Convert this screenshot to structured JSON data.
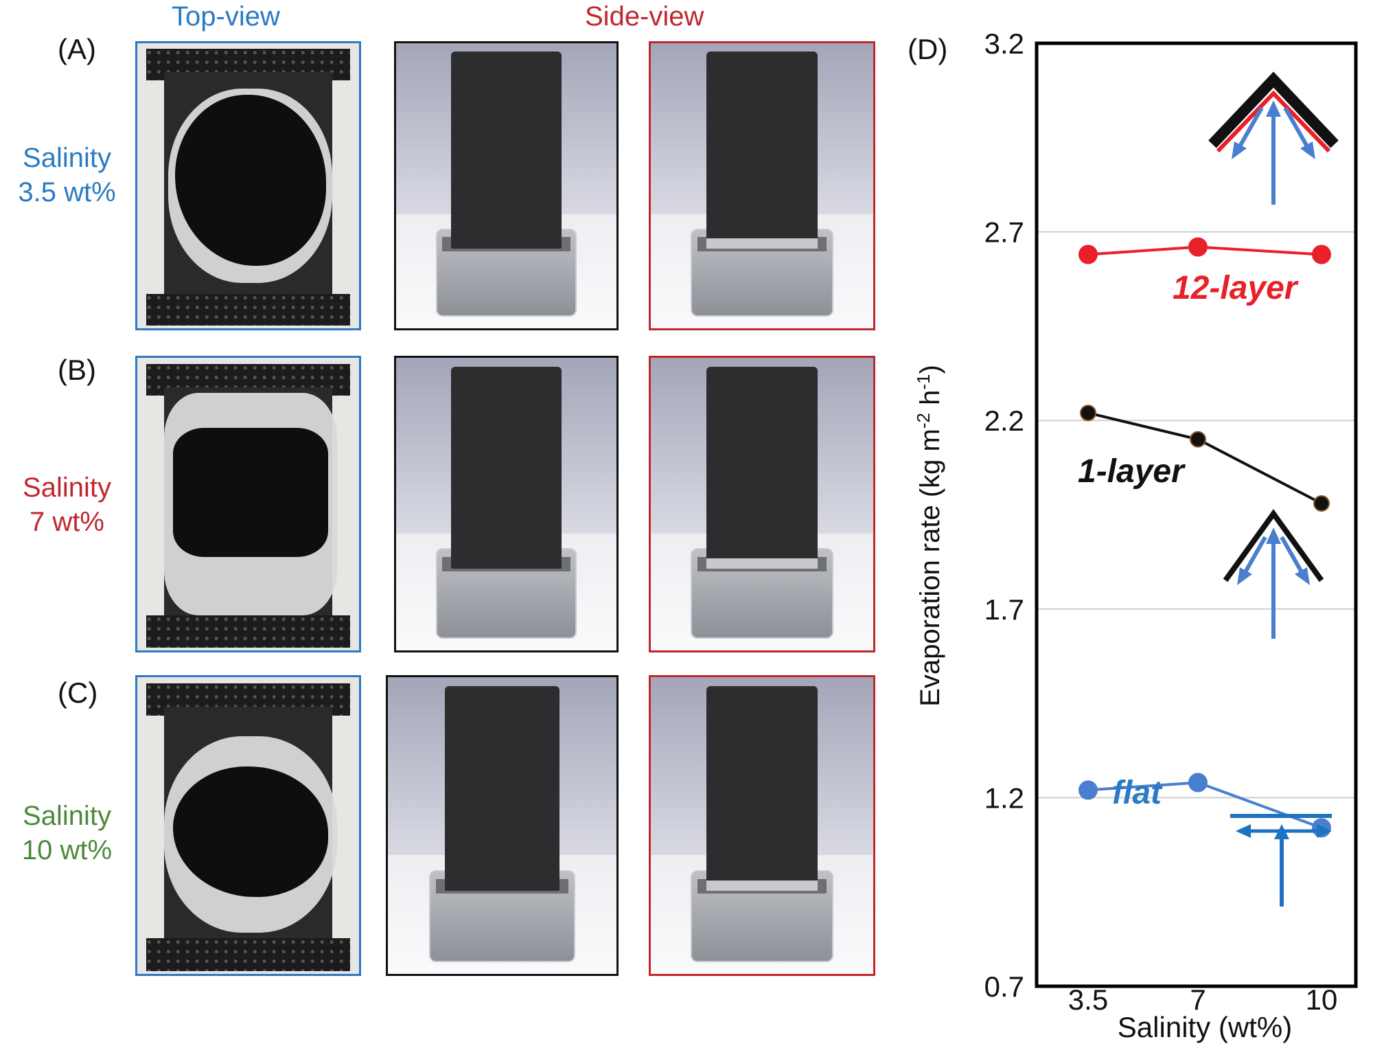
{
  "headers": {
    "top_view": "Top-view",
    "side_view": "Side-view"
  },
  "colors": {
    "blue": "#2b7ac4",
    "red": "#c0272d",
    "green": "#4c8a3a",
    "black": "#111111",
    "series_blue": "#4a7fcf",
    "series_red": "#e8202a"
  },
  "rows": [
    {
      "label": "(A)",
      "salinity_line1": "Salinity",
      "salinity_line2": "3.5 wt%",
      "salinity_color": "#2b7ac4"
    },
    {
      "label": "(B)",
      "salinity_line1": "Salinity",
      "salinity_line2": "7 wt%",
      "salinity_color": "#c0272d"
    },
    {
      "label": "(C)",
      "salinity_line1": "Salinity",
      "salinity_line2": "10 wt%",
      "salinity_color": "#4c8a3a"
    }
  ],
  "chart_panel_label": "(D)",
  "chart_data": {
    "type": "line",
    "xlabel": "Salinity (wt%)",
    "ylabel_main": "Evaporation rate (kg m",
    "ylabel_sup1": "-2",
    "ylabel_mid": " h",
    "ylabel_sup2": "-1",
    "ylabel_end": ")",
    "x": [
      3.5,
      7,
      10
    ],
    "x_tick_labels": [
      "3.5",
      "7",
      "10"
    ],
    "ylim": [
      0.7,
      3.2
    ],
    "y_ticks": [
      0.7,
      1.2,
      1.7,
      2.2,
      2.7,
      3.2
    ],
    "y_tick_labels": [
      "0.7",
      "1.2",
      "1.7",
      "2.2",
      "2.7",
      "3.2"
    ],
    "grid": true,
    "series": [
      {
        "name": "12-layer",
        "values": [
          2.64,
          2.66,
          2.64
        ],
        "color": "#e8202a"
      },
      {
        "name": "1-layer",
        "values": [
          2.22,
          2.15,
          1.98
        ],
        "color": "#111111"
      },
      {
        "name": "flat",
        "values": [
          1.22,
          1.24,
          1.12
        ],
        "color": "#4a7fcf"
      }
    ]
  }
}
